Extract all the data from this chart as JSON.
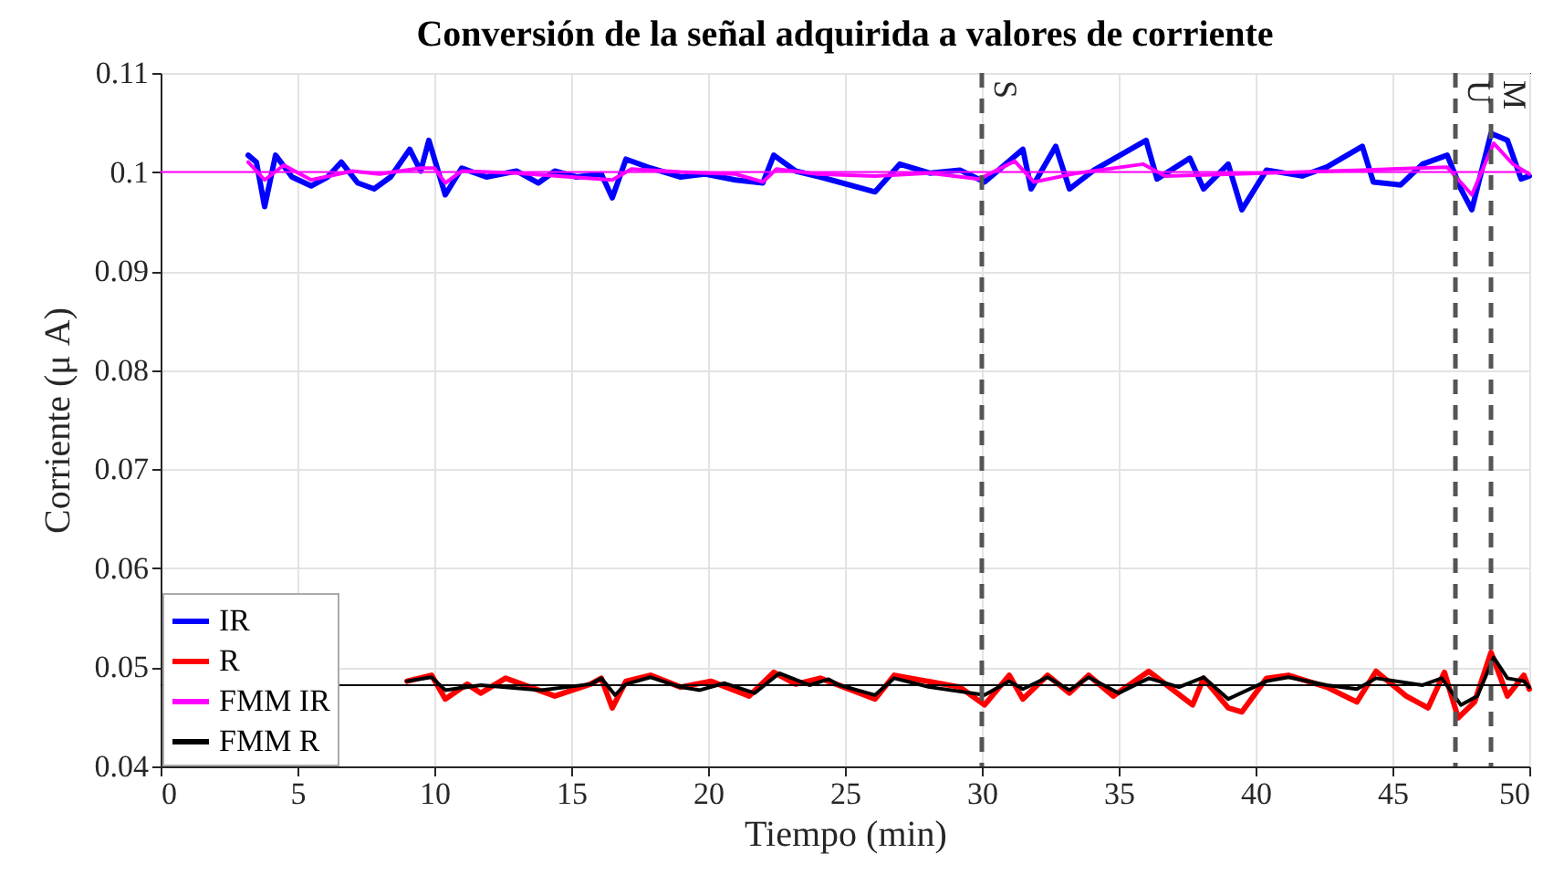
{
  "chart_data": {
    "type": "line",
    "title": "Conversión de la señal adquirida a valores de corriente",
    "xlabel": "Tiempo (min)",
    "ylabel": "Corriente (μ A)",
    "xlim": [
      0,
      50
    ],
    "xticks": [
      0,
      5,
      10,
      15,
      20,
      25,
      30,
      35,
      40,
      45,
      50
    ],
    "ylim": [
      0.04,
      0.11
    ],
    "yticks": [
      0.04,
      0.05,
      0.06,
      0.07,
      0.08,
      0.09,
      0.1,
      0.11
    ],
    "grid": true,
    "legend": "bottom left",
    "line_style": "solid",
    "marker": "none",
    "series": [
      {
        "name": "IR",
        "color": "#0000ff",
        "x": [
          3.2,
          3.5,
          3.8,
          4.2,
          4.8,
          5.5,
          6.1,
          6.6,
          7.2,
          7.8,
          8.4,
          9.1,
          9.5,
          9.8,
          10.4,
          11.0,
          11.9,
          13.0,
          13.8,
          14.4,
          15.2,
          16.1,
          16.5,
          17.0,
          17.9,
          19.0,
          19.9,
          21.0,
          22.0,
          22.4,
          23.2,
          24.1,
          26.1,
          27.0,
          28.1,
          29.2,
          30.1,
          31.5,
          31.8,
          32.7,
          33.2,
          34.1,
          36.0,
          36.4,
          37.6,
          38.1,
          39.0,
          39.5,
          40.4,
          41.7,
          42.6,
          43.9,
          44.3,
          45.3,
          46.1,
          47.0,
          47.5,
          47.9,
          48.6,
          49.2,
          49.7,
          50.0
        ],
        "values": [
          0.1017,
          0.101,
          0.0965,
          0.1017,
          0.0995,
          0.0986,
          0.0995,
          0.101,
          0.0989,
          0.0983,
          0.0995,
          0.1023,
          0.1001,
          0.1032,
          0.0977,
          0.1004,
          0.0995,
          0.1001,
          0.0989,
          0.1001,
          0.0995,
          0.0998,
          0.0974,
          0.1013,
          0.1004,
          0.0995,
          0.0998,
          0.0992,
          0.0989,
          0.1017,
          0.1001,
          0.0995,
          0.098,
          0.1008,
          0.0999,
          0.1002,
          0.099,
          0.1023,
          0.0983,
          0.1026,
          0.0983,
          0.1002,
          0.1032,
          0.0993,
          0.1014,
          0.0983,
          0.1008,
          0.0962,
          0.1002,
          0.0996,
          0.1005,
          0.1026,
          0.099,
          0.0987,
          0.1008,
          0.1017,
          0.0983,
          0.0962,
          0.1039,
          0.1032,
          0.0993,
          0.0996
        ]
      },
      {
        "name": "R",
        "color": "#ff0000",
        "x": [
          9.0,
          9.9,
          10.4,
          11.2,
          11.7,
          12.6,
          13.5,
          14.4,
          15.7,
          16.1,
          16.5,
          17.0,
          17.9,
          19.0,
          20.1,
          21.5,
          22.4,
          23.2,
          24.1,
          26.1,
          26.8,
          29.2,
          30.1,
          31.0,
          31.5,
          32.4,
          33.2,
          33.9,
          34.8,
          36.1,
          37.7,
          38.1,
          39.0,
          39.5,
          40.4,
          41.2,
          42.6,
          43.7,
          44.4,
          45.5,
          46.3,
          46.9,
          47.4,
          48.0,
          48.6,
          49.2,
          49.8,
          50.0
        ],
        "values": [
          0.0486,
          0.0492,
          0.0468,
          0.0483,
          0.0474,
          0.0489,
          0.048,
          0.0471,
          0.0483,
          0.0489,
          0.0459,
          0.0486,
          0.0492,
          0.048,
          0.0486,
          0.0471,
          0.0495,
          0.0483,
          0.0489,
          0.0468,
          0.0492,
          0.048,
          0.0462,
          0.0492,
          0.0468,
          0.0492,
          0.0474,
          0.0492,
          0.0471,
          0.0496,
          0.0462,
          0.0489,
          0.0459,
          0.0455,
          0.0489,
          0.0492,
          0.048,
          0.0465,
          0.0496,
          0.0471,
          0.0459,
          0.0495,
          0.0449,
          0.0465,
          0.0515,
          0.0471,
          0.0492,
          0.0478
        ]
      },
      {
        "name": "FMM IR",
        "color": "#ff00ff",
        "x": [
          3.2,
          3.8,
          4.5,
          5.5,
          7.0,
          8.0,
          9.5,
          10.0,
          10.4,
          11.0,
          13.0,
          15.0,
          16.5,
          17.2,
          19.0,
          21.0,
          22.0,
          22.5,
          24.0,
          26.1,
          28.1,
          29.9,
          31.2,
          31.9,
          33.5,
          35.9,
          36.7,
          40.3,
          43.9,
          47.0,
          47.9,
          48.7,
          49.4,
          50.0
        ],
        "values": [
          0.101,
          0.0992,
          0.1007,
          0.0992,
          0.1001,
          0.0998,
          0.1004,
          0.1004,
          0.0989,
          0.1001,
          0.0999,
          0.0995,
          0.0992,
          0.1003,
          0.1,
          0.0998,
          0.099,
          0.1003,
          0.0998,
          0.0996,
          0.0999,
          0.0993,
          0.1011,
          0.099,
          0.0999,
          0.1008,
          0.0996,
          0.0999,
          0.1002,
          0.1005,
          0.0977,
          0.1029,
          0.1008,
          0.0998
        ]
      },
      {
        "name": "FMM R",
        "color": "#000000",
        "x": [
          9.0,
          9.9,
          10.4,
          11.7,
          13.9,
          15.7,
          16.1,
          16.6,
          17.0,
          17.9,
          19.0,
          19.7,
          20.6,
          21.7,
          22.6,
          23.7,
          24.4,
          24.8,
          26.1,
          26.8,
          28.1,
          30.1,
          31.0,
          31.5,
          32.4,
          33.2,
          33.9,
          35.0,
          36.1,
          37.2,
          38.1,
          39.0,
          40.4,
          41.2,
          42.6,
          43.7,
          44.4,
          46.1,
          46.8,
          47.5,
          48.1,
          48.7,
          49.2,
          49.8,
          50.0
        ],
        "values": [
          0.0486,
          0.049,
          0.0477,
          0.0482,
          0.0477,
          0.0483,
          0.0489,
          0.0472,
          0.0483,
          0.049,
          0.048,
          0.0477,
          0.0484,
          0.0474,
          0.0494,
          0.0482,
          0.0488,
          0.0482,
          0.0472,
          0.0489,
          0.048,
          0.0472,
          0.0486,
          0.0478,
          0.049,
          0.0477,
          0.049,
          0.0474,
          0.0489,
          0.048,
          0.049,
          0.0468,
          0.0486,
          0.049,
          0.0482,
          0.0478,
          0.0489,
          0.0482,
          0.0489,
          0.0462,
          0.0471,
          0.051,
          0.0489,
          0.0486,
          0.048
        ]
      }
    ],
    "ref_lines": [
      {
        "axis": "x",
        "value": 30,
        "label": "S",
        "color": "#555555",
        "line_style": "dashed"
      },
      {
        "axis": "x",
        "value": 47.3,
        "label": "U",
        "color": "#555555",
        "line_style": "dashed"
      },
      {
        "axis": "x",
        "value": 48.6,
        "label": "M",
        "color": "#555555",
        "line_style": "dashed"
      },
      {
        "axis": "y",
        "value": 0.1,
        "color": "#ff00ff",
        "line_style": "solid"
      },
      {
        "axis": "y",
        "value": 0.0482,
        "color": "#000000",
        "line_style": "solid"
      }
    ]
  }
}
